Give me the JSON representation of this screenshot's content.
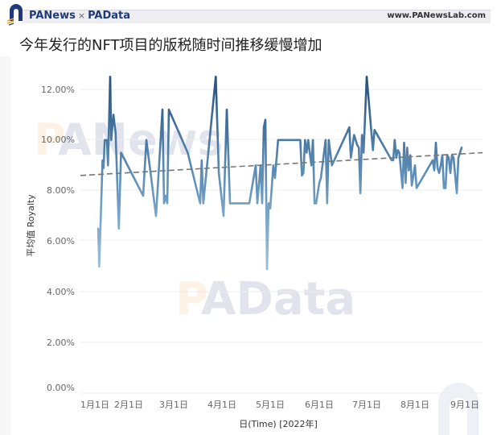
{
  "header": {
    "brand_left": "PANews",
    "brand_sep": "×",
    "brand_right": "PAData",
    "site": "www.PANewsLab.com"
  },
  "watermarks": {
    "top": "PANews",
    "middle": "PAData"
  },
  "chart_data": {
    "type": "line",
    "title": "今年发行的NFT项目的版税随时间推移缓慢增加",
    "xlabel": "日(Time) [2022年]",
    "ylabel": "平均值 Royalty",
    "ylim": [
      0,
      13
    ],
    "yticks": [
      "0.00%",
      "2.00%",
      "4.00%",
      "6.00%",
      "8.00%",
      "10.00%",
      "12.00%"
    ],
    "xticks": [
      "1月1日",
      "2月1日",
      "3月1日",
      "4月1日",
      "5月1日",
      "6月1日",
      "7月1日",
      "8月1日",
      "9月1日"
    ],
    "grid": true,
    "legend": "none",
    "series": [
      {
        "name": "平均值 Royalty",
        "color_start": "#a9cbe0",
        "color_end": "#2b5a86",
        "points_pct": [
          [
            "01-04",
            6.5
          ],
          [
            "01-05",
            5.0
          ],
          [
            "01-08",
            9.2
          ],
          [
            "01-09",
            8.9
          ],
          [
            "01-10",
            10.0
          ],
          [
            "01-12",
            10.0
          ],
          [
            "01-13",
            9.0
          ],
          [
            "01-15",
            12.5
          ],
          [
            "01-16",
            10.0
          ],
          [
            "01-18",
            11.0
          ],
          [
            "01-20",
            10.3
          ],
          [
            "01-23",
            6.5
          ],
          [
            "01-25",
            9.5
          ],
          [
            "02-10",
            7.8
          ],
          [
            "02-12",
            10.0
          ],
          [
            "02-18",
            7.0
          ],
          [
            "02-22",
            11.2
          ],
          [
            "02-23",
            7.5
          ],
          [
            "02-24",
            7.8
          ],
          [
            "02-25",
            7.5
          ],
          [
            "02-26",
            11.2
          ],
          [
            "03-10",
            9.5
          ],
          [
            "03-18",
            7.5
          ],
          [
            "03-19",
            9.2
          ],
          [
            "03-20",
            7.5
          ],
          [
            "03-28",
            12.5
          ],
          [
            "03-30",
            8.7
          ],
          [
            "04-02",
            7.0
          ],
          [
            "04-04",
            11.2
          ],
          [
            "04-06",
            7.5
          ],
          [
            "04-18",
            7.5
          ],
          [
            "04-22",
            9.0
          ],
          [
            "04-23",
            7.5
          ],
          [
            "04-25",
            9.0
          ],
          [
            "04-26",
            7.5
          ],
          [
            "04-27",
            10.5
          ],
          [
            "04-28",
            10.8
          ],
          [
            "04-29",
            4.9
          ],
          [
            "04-30",
            7.5
          ],
          [
            "05-01",
            7.3
          ],
          [
            "05-03",
            9.0
          ],
          [
            "05-04",
            8.5
          ],
          [
            "05-06",
            10.0
          ],
          [
            "05-20",
            10.0
          ],
          [
            "05-21",
            8.6
          ],
          [
            "05-22",
            8.7
          ],
          [
            "05-23",
            10.0
          ],
          [
            "05-24",
            9.5
          ],
          [
            "05-25",
            10.0
          ],
          [
            "05-27",
            9.0
          ],
          [
            "05-28",
            10.0
          ],
          [
            "05-29",
            7.5
          ],
          [
            "05-30",
            7.5
          ],
          [
            "06-01",
            8.3
          ],
          [
            "06-02",
            8.5
          ],
          [
            "06-05",
            10.0
          ],
          [
            "06-06",
            7.5
          ],
          [
            "06-07",
            10.0
          ],
          [
            "06-09",
            9.0
          ],
          [
            "06-20",
            10.5
          ],
          [
            "06-21",
            9.3
          ],
          [
            "06-23",
            10.2
          ],
          [
            "06-25",
            9.8
          ],
          [
            "06-26",
            9.7
          ],
          [
            "06-27",
            7.9
          ],
          [
            "06-28",
            10.2
          ],
          [
            "06-29",
            9.5
          ],
          [
            "07-01",
            12.5
          ],
          [
            "07-05",
            9.6
          ],
          [
            "07-06",
            10.4
          ],
          [
            "07-17",
            9.2
          ],
          [
            "07-18",
            9.2
          ],
          [
            "07-19",
            10.0
          ],
          [
            "07-20",
            9.3
          ],
          [
            "07-21",
            9.6
          ],
          [
            "07-22",
            9.5
          ],
          [
            "07-24",
            8.1
          ],
          [
            "07-25",
            9.9
          ],
          [
            "07-26",
            8.3
          ],
          [
            "07-27",
            9.7
          ],
          [
            "07-28",
            8.8
          ],
          [
            "07-29",
            9.4
          ],
          [
            "07-30",
            8.2
          ],
          [
            "08-01",
            9.0
          ],
          [
            "08-02",
            8.1
          ],
          [
            "08-12",
            9.2
          ],
          [
            "08-13",
            8.8
          ],
          [
            "08-14",
            9.9
          ],
          [
            "08-15",
            8.9
          ],
          [
            "08-16",
            8.7
          ],
          [
            "08-17",
            9.0
          ],
          [
            "08-18",
            9.4
          ],
          [
            "08-19",
            8.1
          ],
          [
            "08-20",
            8.1
          ],
          [
            "08-21",
            9.4
          ],
          [
            "08-22",
            9.3
          ],
          [
            "08-23",
            8.7
          ],
          [
            "08-24",
            9.4
          ],
          [
            "08-25",
            9.3
          ],
          [
            "08-27",
            7.9
          ],
          [
            "08-28",
            9.3
          ],
          [
            "08-30",
            9.7
          ]
        ]
      },
      {
        "name": "trend",
        "style": "dashed",
        "color": "#7a7a7a",
        "from": [
          "01-01",
          8.6
        ],
        "to": [
          "09-07",
          9.5
        ]
      }
    ]
  }
}
